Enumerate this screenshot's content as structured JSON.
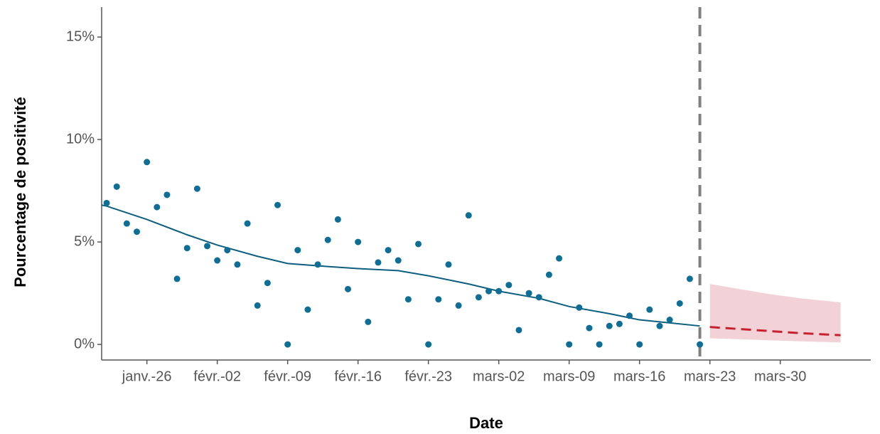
{
  "chart_data": {
    "type": "scatter",
    "x_label": "Date",
    "y_label": "Pourcentage de positivité",
    "xlim": [
      21.5,
      98
    ],
    "xticks": [
      {
        "value": 26,
        "label": "janv.-26"
      },
      {
        "value": 33,
        "label": "févr.-02"
      },
      {
        "value": 40,
        "label": "févr.-09"
      },
      {
        "value": 47,
        "label": "févr.-16"
      },
      {
        "value": 54,
        "label": "févr.-23"
      },
      {
        "value": 61,
        "label": "mars-02"
      },
      {
        "value": 68,
        "label": "mars-09"
      },
      {
        "value": 75,
        "label": "mars-16"
      },
      {
        "value": 82,
        "label": "mars-23"
      },
      {
        "value": 89,
        "label": "mars-30"
      }
    ],
    "ylim": [
      -0.76,
      16.46
    ],
    "yticks": [
      {
        "value": 0,
        "label": "0%"
      },
      {
        "value": 5,
        "label": "5%"
      },
      {
        "value": 10,
        "label": "10%"
      },
      {
        "value": 15,
        "label": "15%"
      }
    ],
    "grid": false,
    "points": {
      "color": "#0f6e96",
      "x": [
        22,
        23,
        24,
        25,
        26,
        27,
        28,
        29,
        30,
        31,
        32,
        33,
        34,
        35,
        36,
        37,
        38,
        39,
        40,
        41,
        42,
        43,
        44,
        45,
        46,
        47,
        48,
        49,
        50,
        51,
        52,
        53,
        54,
        55,
        56,
        57,
        58,
        59,
        60,
        61,
        62,
        63,
        64,
        65,
        66,
        67,
        68,
        69,
        70,
        71,
        72,
        73,
        74,
        75,
        76,
        77,
        78,
        79,
        80,
        81
      ],
      "values": [
        6.9,
        7.7,
        5.9,
        5.5,
        8.9,
        6.7,
        7.3,
        3.2,
        4.7,
        7.6,
        4.8,
        4.1,
        4.6,
        3.9,
        5.9,
        1.9,
        3.0,
        6.8,
        0,
        4.6,
        1.7,
        3.9,
        5.1,
        6.1,
        2.7,
        5.0,
        1.1,
        4.0,
        4.6,
        4.1,
        2.2,
        4.9,
        0,
        2.2,
        3.9,
        1.9,
        6.3,
        2.3,
        2.6,
        2.6,
        2.9,
        0.7,
        2.5,
        2.3,
        3.4,
        4.2,
        0,
        1.8,
        0.8,
        0,
        0.9,
        1.0,
        1.4,
        0,
        1.7,
        0.9,
        1.2,
        2.0,
        3.2,
        0
      ]
    },
    "trend": {
      "color": "#0e5e80",
      "x": [
        21.5,
        22,
        26,
        30,
        33,
        37,
        40,
        44,
        47,
        51,
        54,
        58,
        61,
        65,
        68,
        72,
        75,
        79,
        81
      ],
      "values": [
        6.8,
        6.75,
        6.1,
        5.35,
        4.85,
        4.3,
        3.95,
        3.8,
        3.7,
        3.6,
        3.35,
        2.95,
        2.6,
        2.25,
        1.85,
        1.5,
        1.2,
        1.0,
        0.9
      ]
    },
    "forecast": {
      "color": "#c8202e",
      "band_color": "#f2d2d6",
      "x": [
        82,
        85,
        88,
        91,
        95
      ],
      "values": [
        0.85,
        0.75,
        0.65,
        0.55,
        0.45
      ],
      "upper": [
        2.95,
        2.7,
        2.45,
        2.25,
        2.05
      ],
      "lower": [
        0.3,
        0.25,
        0.2,
        0.15,
        0.1
      ]
    },
    "vline": {
      "x": 81,
      "color": "#808080"
    }
  }
}
